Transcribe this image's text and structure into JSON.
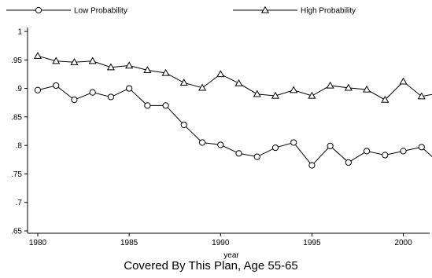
{
  "chart_data": {
    "type": "line",
    "title": "",
    "xlabel": "year",
    "ylabel": "",
    "caption": "Covered By This Plan, Age 55-65",
    "xlim": [
      1980,
      2002
    ],
    "ylim": [
      0.65,
      1.0
    ],
    "x_ticks": [
      1980,
      1985,
      1990,
      1995,
      2000
    ],
    "x_tick_labels": [
      "1980",
      "1985",
      "1990",
      "1995",
      "2000"
    ],
    "y_ticks": [
      0.65,
      0.7,
      0.75,
      0.8,
      0.85,
      0.9,
      0.95,
      1.0
    ],
    "y_tick_labels": [
      ".65",
      ".7",
      ".75",
      ".8",
      ".85",
      ".9",
      ".95",
      "1"
    ],
    "grid": false,
    "legend_position": "top",
    "x": [
      1980,
      1981,
      1982,
      1983,
      1984,
      1985,
      1986,
      1987,
      1988,
      1989,
      1990,
      1991,
      1992,
      1993,
      1994,
      1995,
      1996,
      1997,
      1998,
      1999,
      2000,
      2001,
      2002
    ],
    "series": [
      {
        "name": "Low Probability",
        "marker": "circle",
        "color": "#000000",
        "values": [
          0.897,
          0.905,
          0.88,
          0.893,
          0.885,
          0.9,
          0.87,
          0.87,
          0.836,
          0.805,
          0.801,
          0.786,
          0.78,
          0.796,
          0.805,
          0.765,
          0.799,
          0.77,
          0.79,
          0.783,
          0.79,
          0.797,
          0.768
        ]
      },
      {
        "name": "High Probability",
        "marker": "triangle",
        "color": "#000000",
        "values": [
          0.957,
          0.948,
          0.946,
          0.948,
          0.937,
          0.94,
          0.932,
          0.927,
          0.91,
          0.901,
          0.925,
          0.909,
          0.89,
          0.887,
          0.897,
          0.887,
          0.905,
          0.901,
          0.898,
          0.88,
          0.912,
          0.886,
          0.892
        ]
      }
    ]
  }
}
